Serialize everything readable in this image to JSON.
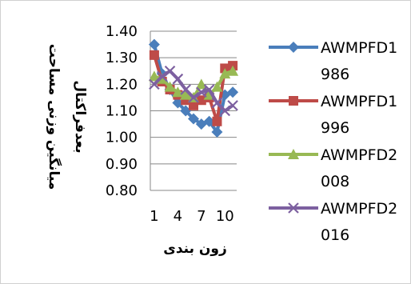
{
  "chart_data": {
    "type": "line",
    "title": "",
    "xlabel": "زون بندی",
    "ylabel": [
      "میانگین وزنی مساحت",
      "بعدفراکتال"
    ],
    "x": [
      1,
      2,
      3,
      4,
      5,
      6,
      7,
      8,
      9,
      10,
      11
    ],
    "x_tick_labels": [
      "1",
      "4",
      "7",
      "10"
    ],
    "y_tick_labels": [
      "0.80",
      "0.90",
      "1.00",
      "1.10",
      "1.20",
      "1.30",
      "1.40"
    ],
    "ylim": [
      0.8,
      1.4
    ],
    "grid": true,
    "legend_position": "right",
    "series": [
      {
        "name_lines": [
          "AWMPFD1",
          "986"
        ],
        "marker": "diamond",
        "color": "#4a7ebb",
        "values": [
          1.35,
          1.24,
          1.18,
          1.13,
          1.1,
          1.07,
          1.05,
          1.06,
          1.02,
          1.16,
          1.17
        ]
      },
      {
        "name_lines": [
          "AWMPFD1",
          "996"
        ],
        "marker": "square",
        "color": "#be4b48",
        "values": [
          1.31,
          1.21,
          1.18,
          1.16,
          1.14,
          1.12,
          1.14,
          1.15,
          1.06,
          1.26,
          1.27
        ]
      },
      {
        "name_lines": [
          "AWMPFD2",
          "008"
        ],
        "marker": "triangle",
        "color": "#98b954",
        "values": [
          1.23,
          1.22,
          1.19,
          1.17,
          1.16,
          1.15,
          1.2,
          1.16,
          1.19,
          1.24,
          1.25
        ]
      },
      {
        "name_lines": [
          "AWMPFD2",
          "016"
        ],
        "marker": "x",
        "color": "#7d60a0",
        "values": [
          1.2,
          1.23,
          1.25,
          1.22,
          1.18,
          1.15,
          1.17,
          1.18,
          1.13,
          1.1,
          1.12
        ]
      }
    ]
  }
}
